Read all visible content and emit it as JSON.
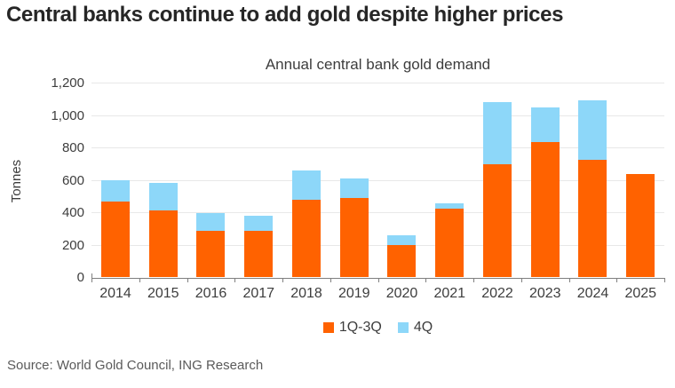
{
  "header": {
    "title": "Central banks continue to add gold despite higher prices"
  },
  "chart_data": {
    "type": "bar",
    "stacked": true,
    "title": "Annual central bank gold demand",
    "ylabel": "Tonnes",
    "xlabel": "",
    "ylim": [
      0,
      1200
    ],
    "ytick_step": 200,
    "ytick_labels": [
      "0",
      "200",
      "400",
      "600",
      "800",
      "1,000",
      "1,200"
    ],
    "grid": true,
    "legend_position": "bottom",
    "categories": [
      "2014",
      "2015",
      "2016",
      "2017",
      "2018",
      "2019",
      "2020",
      "2021",
      "2022",
      "2023",
      "2024",
      "2025"
    ],
    "series": [
      {
        "name": "1Q-3Q",
        "color": "#FF6200",
        "values": [
          465,
          412,
          283,
          283,
          475,
          488,
          196,
          420,
          695,
          833,
          724,
          633
        ]
      },
      {
        "name": "4Q",
        "color": "#8DD7F9",
        "values": [
          135,
          168,
          110,
          93,
          181,
          118,
          60,
          35,
          385,
          215,
          365,
          0
        ]
      }
    ],
    "colors": {
      "gridline": "#e8e8e8",
      "axis": "#7f7f7f",
      "title_text": "#262626",
      "axis_text": "#3d3d3d",
      "source_text": "#5a5a5a"
    }
  },
  "footer": {
    "source": "Source: World Gold Council, ING Research"
  }
}
